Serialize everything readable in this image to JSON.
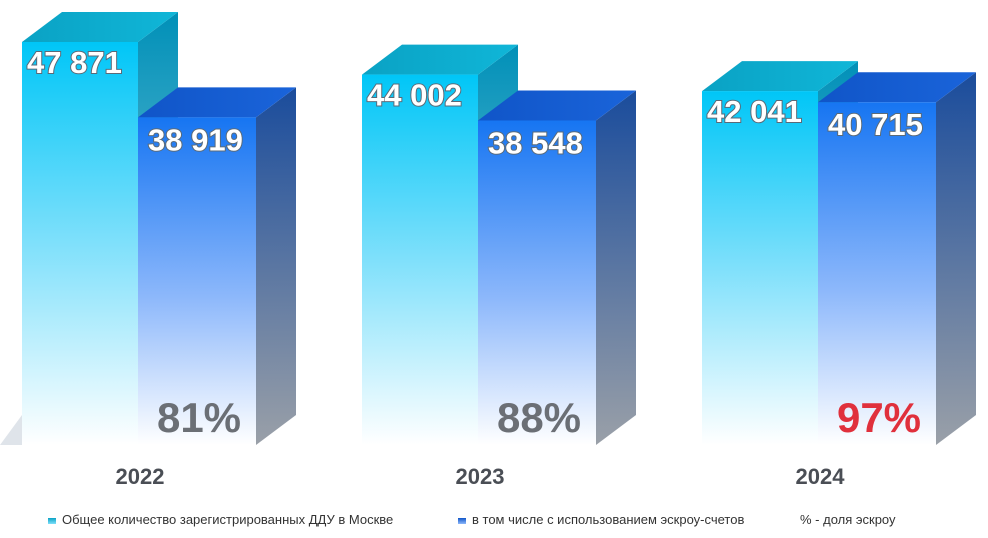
{
  "chart_data": {
    "type": "bar",
    "categories": [
      "2022",
      "2023",
      "2024"
    ],
    "series": [
      {
        "name": "Общее количество зарегистрированных ДДУ в Москве",
        "values": [
          47871,
          44002,
          42041
        ],
        "labels": [
          "47 871",
          "44 002",
          "42 041"
        ]
      },
      {
        "name": "в том числе с использованием эскроу-счетов",
        "values": [
          38919,
          38548,
          40715
        ],
        "labels": [
          "38 919",
          "38 548",
          "40 715"
        ]
      }
    ],
    "share": [
      "81%",
      "88%",
      "97%"
    ],
    "share_legend": "% - доля эскроу",
    "colors": {
      "total": "#19c8f5",
      "escrow": "#1a73f0",
      "share": "#6b6f75",
      "share_highlight": "#e0303c"
    }
  }
}
